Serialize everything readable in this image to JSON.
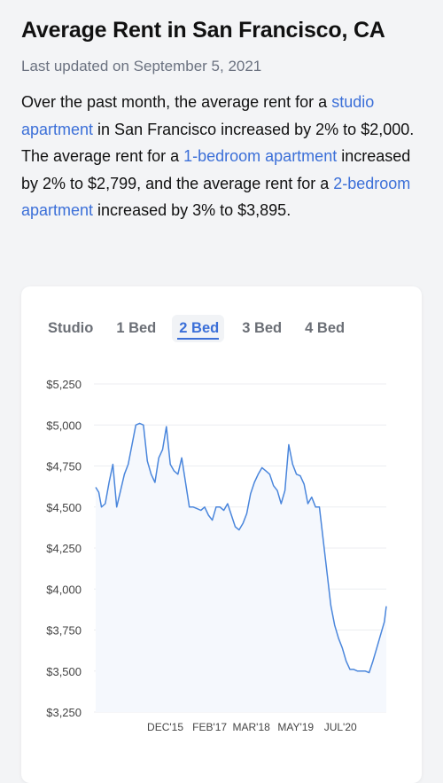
{
  "header": {
    "title": "Average Rent in San Francisco, CA",
    "updated": "Last updated on September 5, 2021"
  },
  "summary": {
    "part1": "Over the past month, the average rent for a ",
    "link_studio": "studio apartment",
    "part2": " in San Francisco increased by 2% to $2,000. The average rent for a ",
    "link_1bed": "1-bedroom apartment",
    "part3": " increased by 2% to $2,799, and the average rent for a ",
    "link_2bed": "2-bedroom apartment",
    "part4": " increased by 3% to $3,895."
  },
  "tabs": [
    {
      "label": "Studio",
      "active": false
    },
    {
      "label": "1 Bed",
      "active": false
    },
    {
      "label": "2 Bed",
      "active": true
    },
    {
      "label": "3 Bed",
      "active": false
    },
    {
      "label": "4 Bed",
      "active": false
    }
  ],
  "colors": {
    "accent": "#3b6fd8",
    "line": "#4a86dc",
    "fill": "#f5f8fd"
  },
  "chart_data": {
    "type": "line",
    "title": "",
    "xlabel": "",
    "ylabel": "",
    "ylim": [
      3250,
      5250
    ],
    "y_ticks": [
      3250,
      3500,
      3750,
      4000,
      4250,
      4500,
      4750,
      5000,
      5250
    ],
    "y_tick_labels": [
      "$3,250",
      "$3,500",
      "$3,750",
      "$4,000",
      "$4,250",
      "$4,500",
      "$4,750",
      "$5,000",
      "$5,250"
    ],
    "x_ticks": [
      {
        "x": 2015.92,
        "label": "DEC'15"
      },
      {
        "x": 2017.08,
        "label": "FEB'17"
      },
      {
        "x": 2018.17,
        "label": "MAR'18"
      },
      {
        "x": 2019.33,
        "label": "MAY'19"
      },
      {
        "x": 2020.5,
        "label": "JUL'20"
      }
    ],
    "xlim": [
      2014.1,
      2021.7
    ],
    "grid": true,
    "series": [
      {
        "x": [
          2014.1,
          2014.18,
          2014.25,
          2014.35,
          2014.45,
          2014.55,
          2014.65,
          2014.75,
          2014.85,
          2014.95,
          2015.05,
          2015.15,
          2015.25,
          2015.35,
          2015.45,
          2015.55,
          2015.65,
          2015.75,
          2015.85,
          2015.95,
          2016.05,
          2016.15,
          2016.25,
          2016.35,
          2016.45,
          2016.55,
          2016.65,
          2016.75,
          2016.85,
          2016.95,
          2017.05,
          2017.15,
          2017.25,
          2017.35,
          2017.45,
          2017.55,
          2017.65,
          2017.75,
          2017.85,
          2017.95,
          2018.05,
          2018.15,
          2018.25,
          2018.35,
          2018.45,
          2018.55,
          2018.65,
          2018.75,
          2018.85,
          2018.95,
          2019.05,
          2019.15,
          2019.25,
          2019.35,
          2019.45,
          2019.55,
          2019.65,
          2019.75,
          2019.85,
          2019.95,
          2020.05,
          2020.15,
          2020.25,
          2020.35,
          2020.45,
          2020.55,
          2020.65,
          2020.75,
          2020.85,
          2020.95,
          2021.05,
          2021.15,
          2021.25,
          2021.35,
          2021.45,
          2021.55,
          2021.65,
          2021.7
        ],
        "y": [
          4620,
          4590,
          4500,
          4520,
          4650,
          4760,
          4500,
          4600,
          4700,
          4760,
          4880,
          5000,
          5010,
          5000,
          4780,
          4700,
          4650,
          4800,
          4850,
          4990,
          4760,
          4720,
          4700,
          4800,
          4650,
          4500,
          4500,
          4490,
          4480,
          4500,
          4450,
          4420,
          4500,
          4500,
          4480,
          4520,
          4450,
          4380,
          4360,
          4400,
          4460,
          4580,
          4650,
          4700,
          4740,
          4720,
          4700,
          4630,
          4600,
          4520,
          4600,
          4880,
          4760,
          4700,
          4690,
          4640,
          4520,
          4560,
          4500,
          4500,
          4300,
          4100,
          3900,
          3780,
          3700,
          3640,
          3560,
          3510,
          3510,
          3500,
          3500,
          3500,
          3490,
          3560,
          3640,
          3720,
          3800,
          3895
        ]
      }
    ]
  }
}
